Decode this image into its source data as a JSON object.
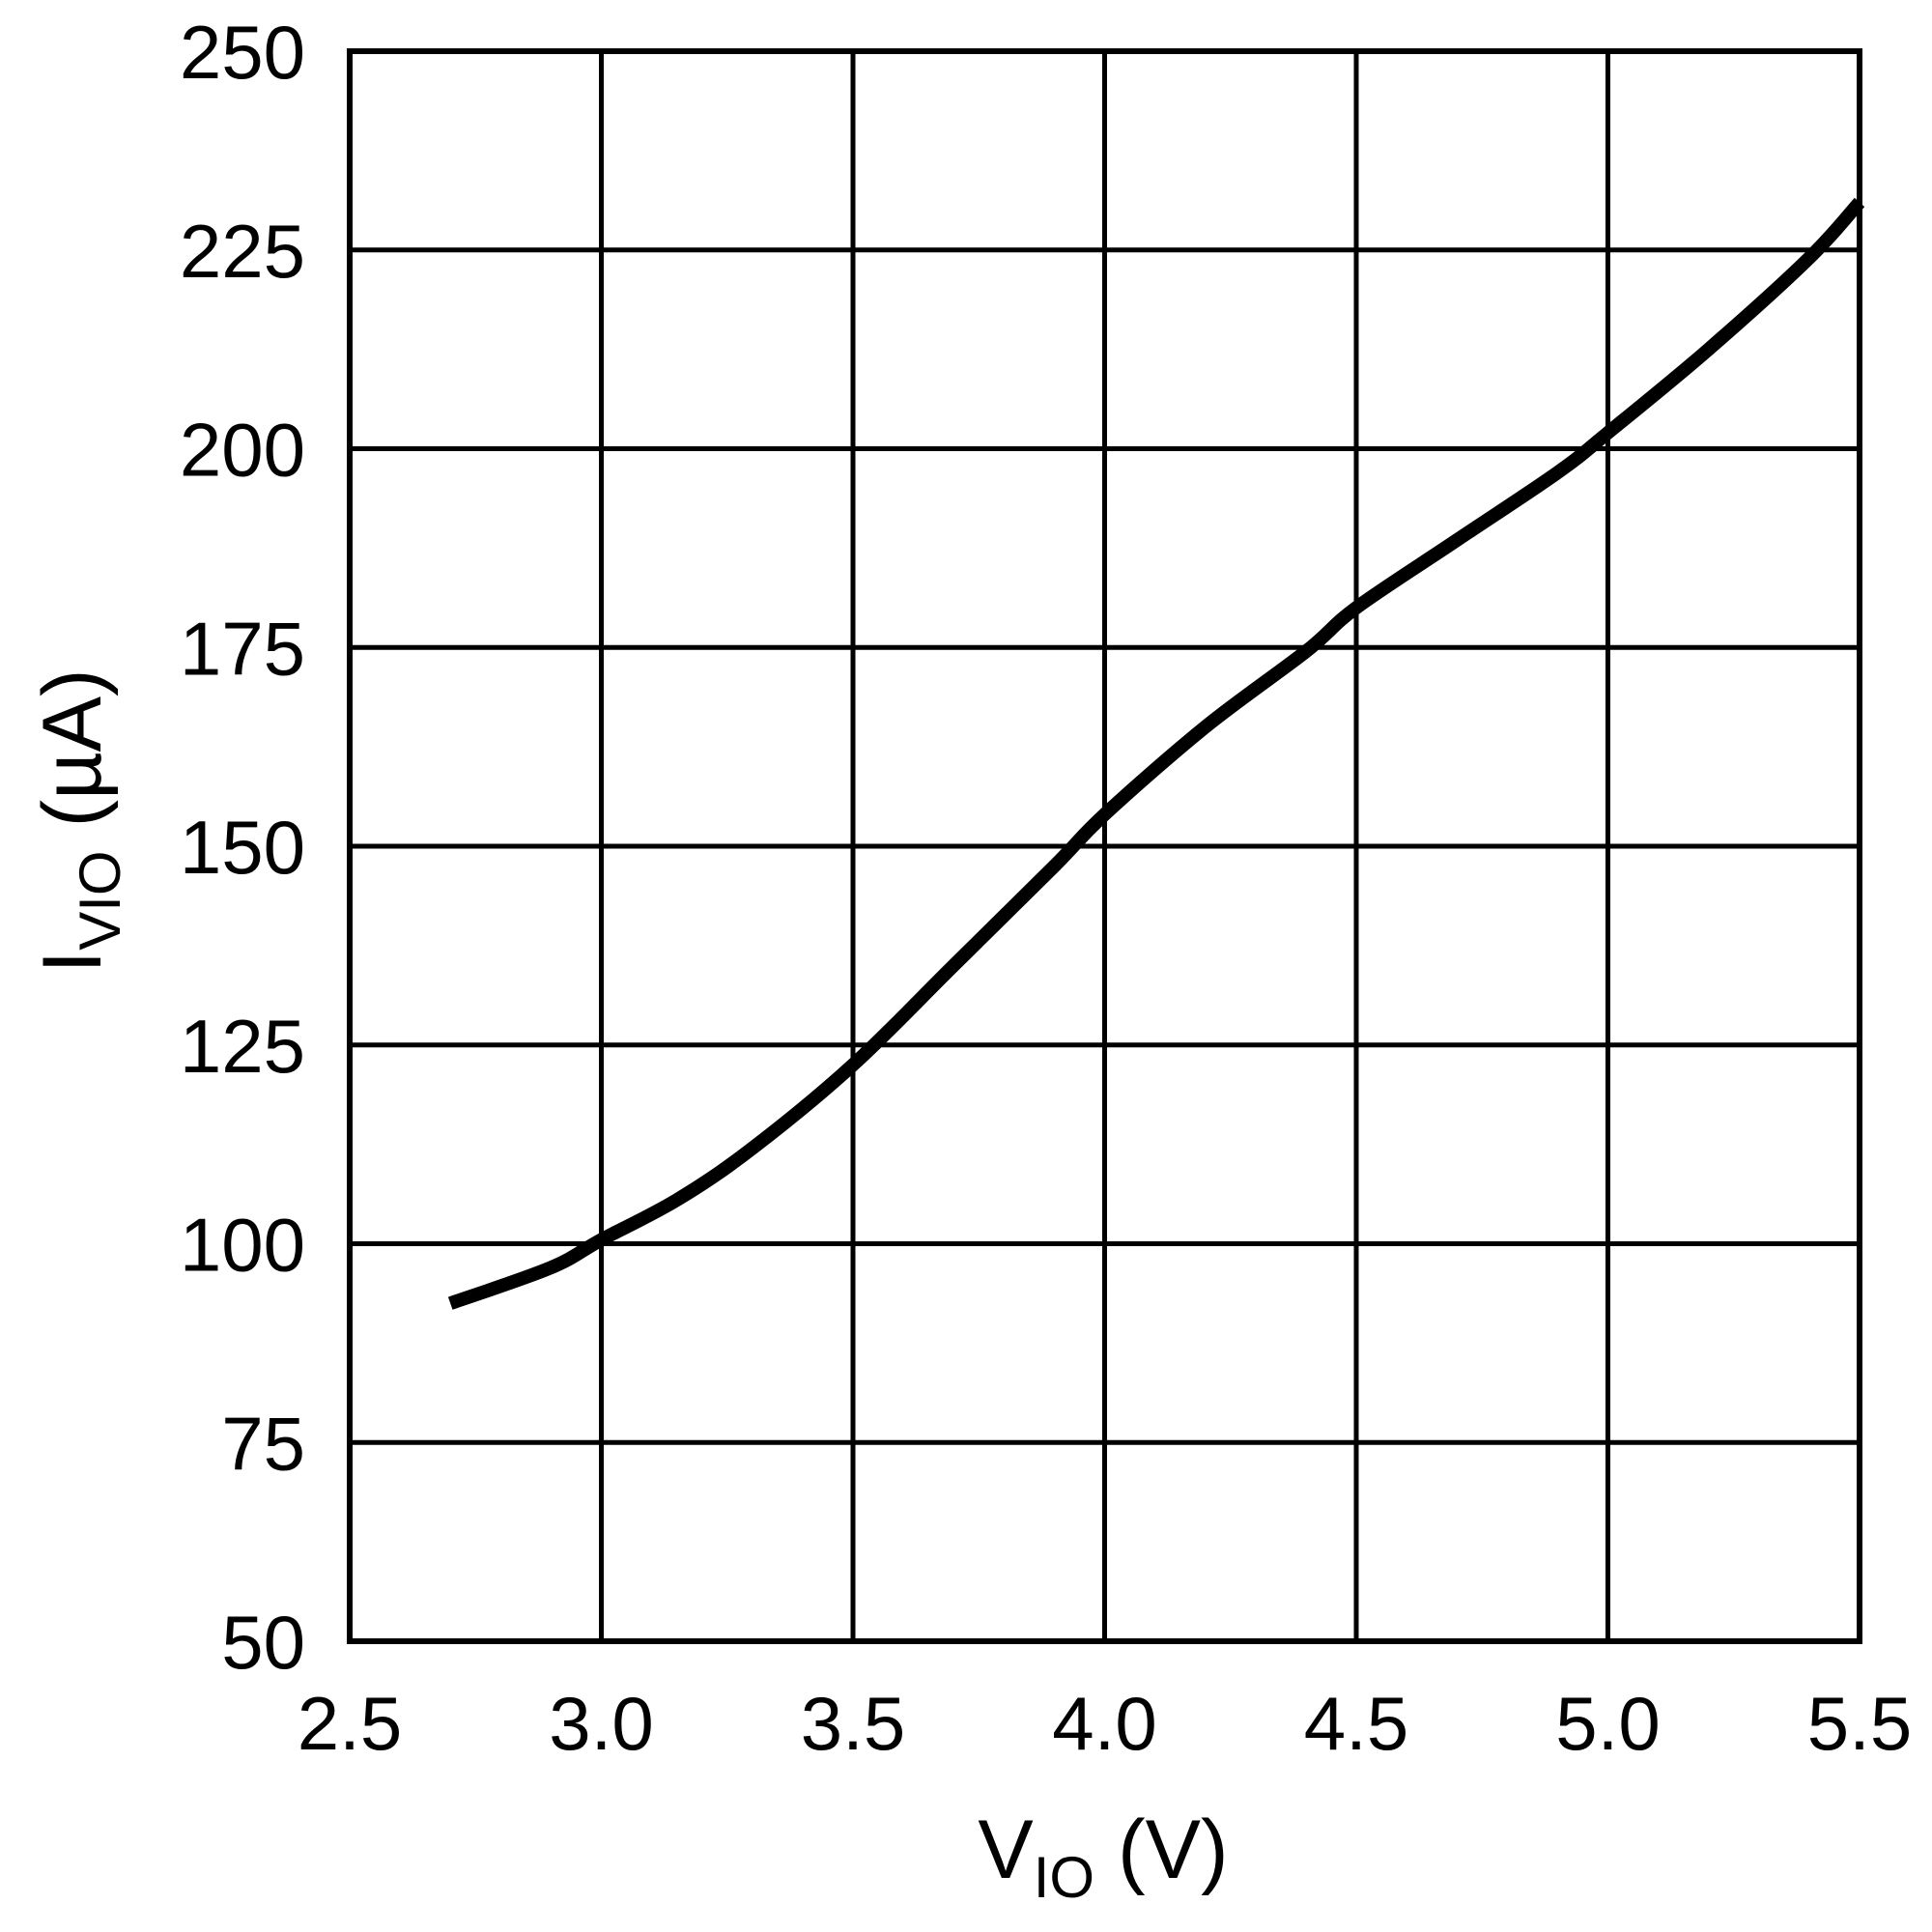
{
  "chart_data": {
    "type": "line",
    "title": "",
    "xlabel": {
      "main": "V",
      "sub": "IO",
      "unit": " (V)"
    },
    "ylabel": {
      "main": "I",
      "sub": "VIO",
      "unit": " (µA)"
    },
    "xlim": [
      2.5,
      5.5
    ],
    "ylim": [
      50,
      250
    ],
    "x_ticks": [
      "2.5",
      "3.0",
      "3.5",
      "4.0",
      "4.5",
      "5.0",
      "5.5"
    ],
    "y_ticks": [
      "50",
      "75",
      "100",
      "125",
      "150",
      "175",
      "200",
      "225",
      "250"
    ],
    "grid": true,
    "legend": "none",
    "line_color": "#000000",
    "series": [
      {
        "x": [
          2.7,
          2.9,
          3.0,
          3.15,
          3.3,
          3.5,
          3.7,
          3.9,
          4.0,
          4.2,
          4.4,
          4.5,
          4.7,
          4.9,
          5.0,
          5.2,
          5.4,
          5.5
        ],
        "values": [
          92.5,
          97,
          100.5,
          105.5,
          112,
          122.5,
          135,
          147.5,
          154,
          165,
          174.5,
          180,
          188.5,
          197,
          202,
          212.5,
          224,
          231
        ]
      }
    ]
  }
}
